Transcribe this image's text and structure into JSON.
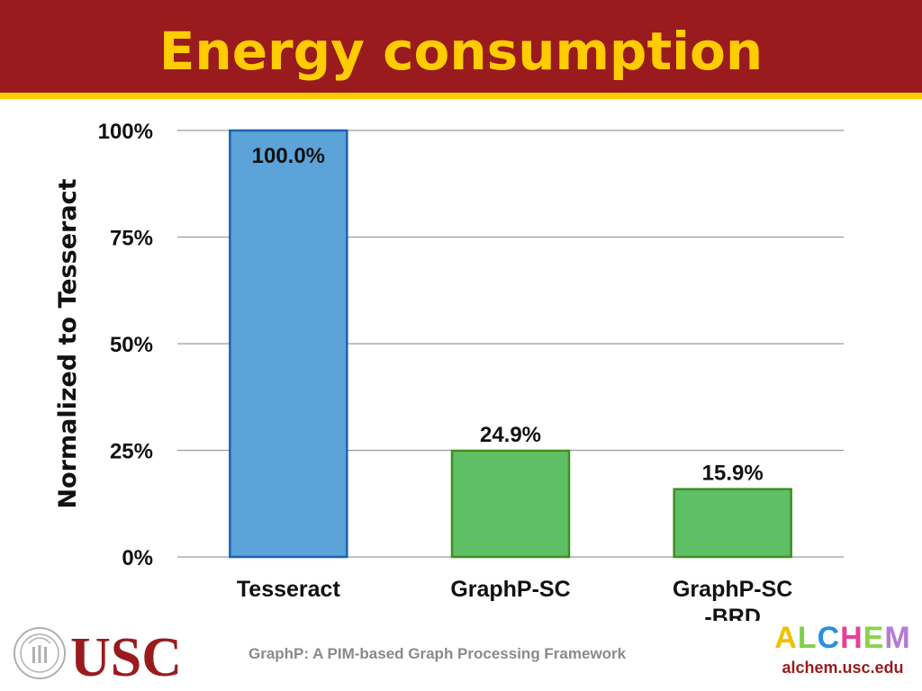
{
  "slide": {
    "title": "Energy consumption",
    "footer": "GraphP: A PIM-based Graph Processing Framework",
    "usc_logo_text": "USC",
    "alchem_letters": [
      {
        "char": "A",
        "color": "#f0c000"
      },
      {
        "char": "L",
        "color": "#7fd14a"
      },
      {
        "char": "C",
        "color": "#2a8ee0"
      },
      {
        "char": "H",
        "color": "#e8409a"
      },
      {
        "char": "E",
        "color": "#8ad44a"
      },
      {
        "char": "M",
        "color": "#b57ad6"
      }
    ],
    "alchem_url": "alchem.usc.edu",
    "colors": {
      "header": "#991b1e",
      "accent": "#ffcc00"
    }
  },
  "chart_data": {
    "type": "bar",
    "categories": [
      [
        "Tesseract"
      ],
      [
        "GraphP-SC"
      ],
      [
        "GraphP-SC",
        "-BRD"
      ]
    ],
    "values": [
      100.0,
      24.9,
      15.9
    ],
    "data_labels": [
      "100.0%",
      "24.9%",
      "15.9%"
    ],
    "bar_colors": [
      "#5ba3d9",
      "#5fbf66",
      "#5fbf66"
    ],
    "bar_edge_colors": [
      "#1b63b0",
      "#3f8f1f",
      "#3f8f1f"
    ],
    "ylabel": "Normalized to Tesseract",
    "ylim": [
      0,
      100
    ],
    "yticks": [
      0,
      25,
      50,
      75,
      100
    ],
    "ytick_labels": [
      "0%",
      "25%",
      "50%",
      "75%",
      "100%"
    ],
    "grid": true,
    "legend": "none"
  }
}
